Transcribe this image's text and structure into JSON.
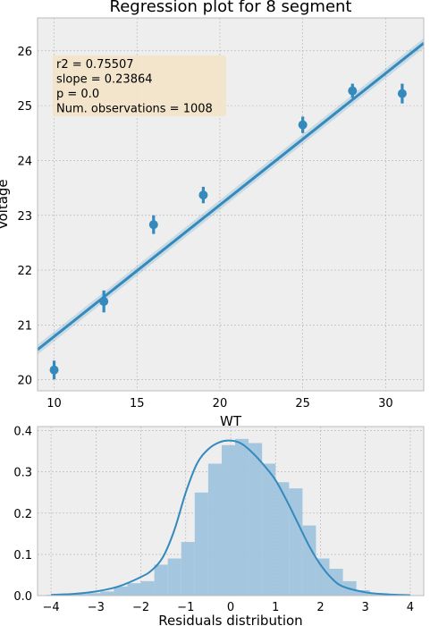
{
  "chart_data": [
    {
      "type": "scatter",
      "title": "Regression plot for 8 segment",
      "xlabel": "WT",
      "ylabel": "Voltage",
      "xlim": [
        9,
        32.3
      ],
      "ylim": [
        19.8,
        26.6
      ],
      "xticks": [
        10,
        15,
        20,
        25,
        30
      ],
      "yticks": [
        20,
        21,
        22,
        23,
        24,
        25,
        26
      ],
      "grid": true,
      "points": [
        {
          "x": 10,
          "y": 20.18,
          "err": 0.17
        },
        {
          "x": 13,
          "y": 21.43,
          "err": 0.2
        },
        {
          "x": 16,
          "y": 22.83,
          "err": 0.17
        },
        {
          "x": 19,
          "y": 23.37,
          "err": 0.15
        },
        {
          "x": 25,
          "y": 24.65,
          "err": 0.15
        },
        {
          "x": 28,
          "y": 25.27,
          "err": 0.13
        },
        {
          "x": 31,
          "y": 25.22,
          "err": 0.18
        }
      ],
      "fit_line": {
        "x": [
          9,
          32.3
        ],
        "y": [
          20.55,
          26.14
        ]
      },
      "stats_box": {
        "r2": "r2 = 0.75507",
        "slope": "slope = 0.23864",
        "p": "p = 0.0",
        "n": "Num. observations = 1008"
      },
      "colors": {
        "marker": "#348abd",
        "box": "#f3e3c8",
        "background": "#eeeeee"
      }
    },
    {
      "type": "bar",
      "xlabel": "Residuals distribution",
      "ylabel": "",
      "xlim": [
        -4.3,
        4.3
      ],
      "ylim": [
        0,
        0.41
      ],
      "xticks": [
        -4,
        -3,
        -2,
        -1,
        0,
        1,
        2,
        3,
        4
      ],
      "yticks": [
        0.0,
        0.1,
        0.2,
        0.3,
        0.4
      ],
      "grid": true,
      "bin_edges": [
        -4.1,
        -3.8,
        -3.5,
        -3.2,
        -2.9,
        -2.6,
        -2.3,
        -2.0,
        -1.7,
        -1.4,
        -1.1,
        -0.8,
        -0.5,
        -0.2,
        0.1,
        0.4,
        0.7,
        1.0,
        1.3,
        1.6,
        1.9,
        2.2,
        2.5,
        2.8,
        3.1,
        3.4
      ],
      "values": [
        0.002,
        0.002,
        0.004,
        0.006,
        0.01,
        0.022,
        0.03,
        0.035,
        0.075,
        0.09,
        0.13,
        0.25,
        0.32,
        0.365,
        0.38,
        0.37,
        0.32,
        0.275,
        0.26,
        0.17,
        0.09,
        0.065,
        0.035,
        0.013,
        0.005
      ],
      "kde": {
        "x": [
          -4.0,
          -3.5,
          -3.0,
          -2.5,
          -2.0,
          -1.75,
          -1.5,
          -1.25,
          -1.0,
          -0.75,
          -0.5,
          -0.25,
          0.0,
          0.25,
          0.5,
          0.75,
          1.0,
          1.25,
          1.5,
          1.75,
          2.0,
          2.25,
          2.5,
          3.0,
          3.5,
          4.0
        ],
        "y": [
          0.002,
          0.004,
          0.01,
          0.022,
          0.045,
          0.062,
          0.095,
          0.16,
          0.25,
          0.32,
          0.355,
          0.372,
          0.376,
          0.368,
          0.345,
          0.315,
          0.28,
          0.23,
          0.175,
          0.12,
          0.075,
          0.042,
          0.022,
          0.008,
          0.003,
          0.001
        ]
      },
      "colors": {
        "bar": "#9fc3dc",
        "kde": "#348abd",
        "background": "#eeeeee"
      }
    }
  ]
}
